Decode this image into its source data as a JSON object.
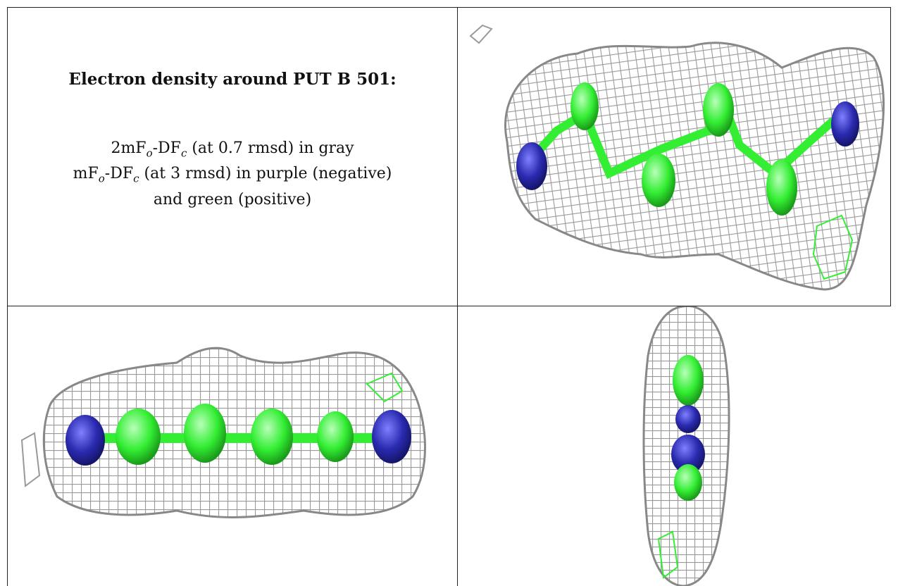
{
  "caption": {
    "title": "Electron density around PUT B 501:",
    "line1": {
      "prefix": "2mF",
      "sub_o": "o",
      "mid": "-DF",
      "sub_c": "c",
      "suffix": " (at 0.7 rmsd) in gray"
    },
    "line2": {
      "prefix": "mF",
      "sub_o": "o",
      "mid": "-DF",
      "sub_c": "c",
      "suffix": " (at 3 rmsd) in purple (negative)"
    },
    "line3": "and green (positive)"
  },
  "colors": {
    "mesh": "#a8a8a8",
    "carbon_green": "#33ee33",
    "nitrogen_blue": "#2a2ab0",
    "border": "#222222"
  },
  "panels": [
    {
      "name": "view-top-right",
      "view": "diagonal"
    },
    {
      "name": "view-bottom-left",
      "view": "side"
    },
    {
      "name": "view-bottom-right",
      "view": "end-on"
    }
  ]
}
